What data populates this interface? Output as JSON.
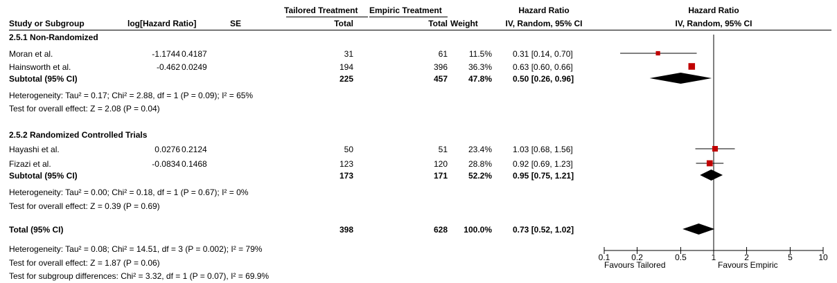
{
  "header": {
    "group_tailored": "Tailored Treatment",
    "group_empiric": "Empiric Treatment",
    "hr_top": "Hazard Ratio",
    "plot_top": "Hazard Ratio",
    "col_study": "Study or Subgroup",
    "col_loghr": "log[Hazard Ratio]",
    "col_se": "SE",
    "col_total_t": "Total",
    "col_total_e": "Total",
    "col_weight": "Weight",
    "col_hr": "IV, Random, 95% CI",
    "col_plot": "IV, Random, 95% CI"
  },
  "groups": [
    {
      "title": "2.5.1 Non-Randomized",
      "studies": [
        {
          "name": "Moran et al.",
          "loghr": "-1.1744",
          "se": "0.4187",
          "total_t": "31",
          "total_e": "61",
          "weight": "11.5%",
          "ci": "0.31 [0.14, 0.70]"
        },
        {
          "name": "Hainsworth et al.",
          "loghr": "-0.462",
          "se": "0.0249",
          "total_t": "194",
          "total_e": "396",
          "weight": "36.3%",
          "ci": "0.63 [0.60, 0.66]"
        }
      ],
      "subtotal": {
        "label": "Subtotal (95% CI)",
        "total_t": "225",
        "total_e": "457",
        "weight": "47.8%",
        "ci": "0.50 [0.26, 0.96]"
      },
      "heterogeneity": "Heterogeneity: Tau² = 0.17; Chi² = 2.88, df = 1 (P = 0.09); I² = 65%",
      "overall": "Test for overall effect: Z = 2.08 (P = 0.04)"
    },
    {
      "title": "2.5.2 Randomized Controlled Trials",
      "studies": [
        {
          "name": "Hayashi et al.",
          "loghr": "0.0276",
          "se": "0.2124",
          "total_t": "50",
          "total_e": "51",
          "weight": "23.4%",
          "ci": "1.03 [0.68, 1.56]"
        },
        {
          "name": "Fizazi et al.",
          "loghr": "-0.0834",
          "se": "0.1468",
          "total_t": "123",
          "total_e": "120",
          "weight": "28.8%",
          "ci": "0.92 [0.69, 1.23]"
        }
      ],
      "subtotal": {
        "label": "Subtotal (95% CI)",
        "total_t": "173",
        "total_e": "171",
        "weight": "52.2%",
        "ci": "0.95 [0.75, 1.21]"
      },
      "heterogeneity": "Heterogeneity: Tau² = 0.00; Chi² = 0.18, df = 1 (P = 0.67); I² = 0%",
      "overall": "Test for overall effect: Z = 0.39 (P = 0.69)"
    }
  ],
  "total": {
    "label": "Total (95% CI)",
    "total_t": "398",
    "total_e": "628",
    "weight": "100.0%",
    "ci": "0.73 [0.52, 1.02]",
    "heterogeneity": "Heterogeneity: Tau² = 0.08; Chi² = 14.51, df = 3 (P = 0.002); I² = 79%",
    "overall": "Test for overall effect: Z = 1.87 (P = 0.06)",
    "subgroup": "Test for subgroup differences: Chi² = 3.32, df = 1 (P = 0.07), I² = 69.9%"
  },
  "axis_labels": {
    "left": "Favours Tailored",
    "right": "Favours Empiric"
  },
  "colors": {
    "marker": "#c00000",
    "diamond": "#000000",
    "line": "#000000"
  },
  "chart_data": {
    "type": "forest",
    "scale": "log",
    "xlim": [
      0.1,
      10
    ],
    "ticks": [
      {
        "value": 0.1,
        "label": "0.1"
      },
      {
        "value": 0.2,
        "label": "0.2"
      },
      {
        "value": 0.5,
        "label": "0.5"
      },
      {
        "value": 1,
        "label": "1"
      },
      {
        "value": 2,
        "label": "2"
      },
      {
        "value": 5,
        "label": "5"
      },
      {
        "value": 10,
        "label": "10"
      }
    ],
    "reference": 1,
    "studies": [
      {
        "study": "Moran et al.",
        "hr": 0.31,
        "lo": 0.14,
        "hi": 0.7,
        "weight": 11.5
      },
      {
        "study": "Hainsworth et al.",
        "hr": 0.63,
        "lo": 0.6,
        "hi": 0.66,
        "weight": 36.3
      },
      {
        "study": "Hayashi et al.",
        "hr": 1.03,
        "lo": 0.68,
        "hi": 1.56,
        "weight": 23.4
      },
      {
        "study": "Fizazi et al.",
        "hr": 0.92,
        "lo": 0.69,
        "hi": 1.23,
        "weight": 28.8
      }
    ],
    "diamonds": [
      {
        "label": "Subtotal (95% CI)",
        "hr": 0.5,
        "lo": 0.26,
        "hi": 0.96
      },
      {
        "label": "Subtotal (95% CI)",
        "hr": 0.95,
        "lo": 0.75,
        "hi": 1.21
      },
      {
        "label": "Total (95% CI)",
        "hr": 0.73,
        "lo": 0.52,
        "hi": 1.02
      }
    ]
  }
}
